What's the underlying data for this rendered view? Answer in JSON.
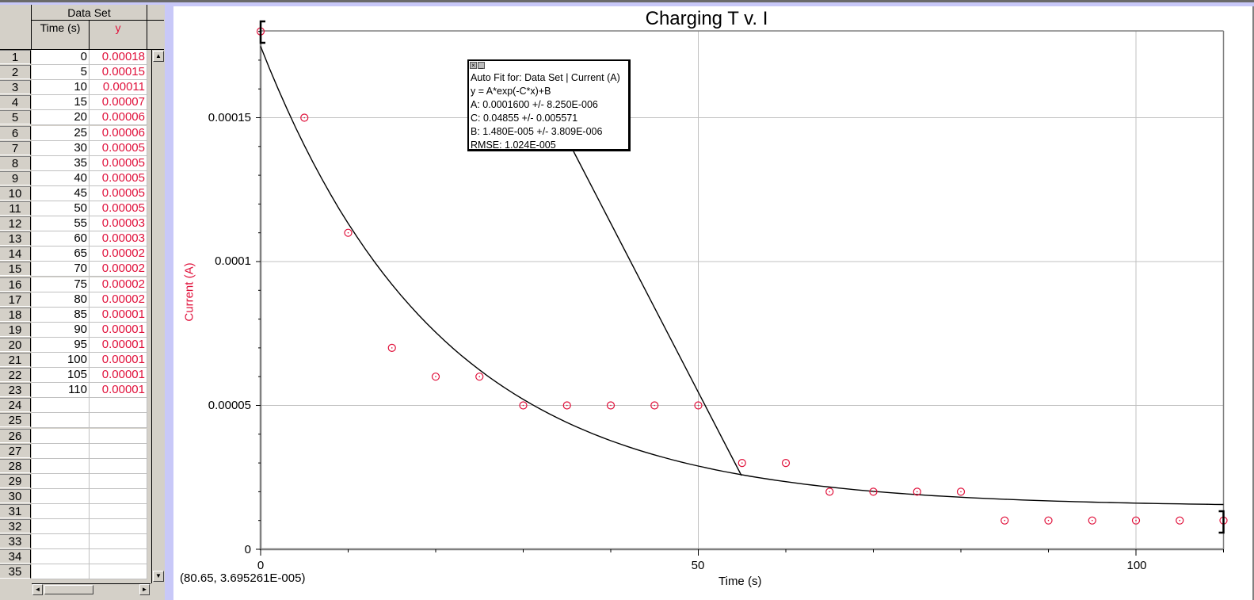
{
  "table": {
    "group_header": "Data Set",
    "columns": [
      {
        "label": "Time (s)",
        "color": "#000000"
      },
      {
        "label": "y",
        "color": "#e0103a"
      }
    ],
    "rows": [
      {
        "n": "1",
        "t": "0",
        "y": "0.00018"
      },
      {
        "n": "2",
        "t": "5",
        "y": "0.00015"
      },
      {
        "n": "3",
        "t": "10",
        "y": "0.00011"
      },
      {
        "n": "4",
        "t": "15",
        "y": "0.00007"
      },
      {
        "n": "5",
        "t": "20",
        "y": "0.00006"
      },
      {
        "n": "6",
        "t": "25",
        "y": "0.00006"
      },
      {
        "n": "7",
        "t": "30",
        "y": "0.00005"
      },
      {
        "n": "8",
        "t": "35",
        "y": "0.00005"
      },
      {
        "n": "9",
        "t": "40",
        "y": "0.00005"
      },
      {
        "n": "10",
        "t": "45",
        "y": "0.00005"
      },
      {
        "n": "11",
        "t": "50",
        "y": "0.00005"
      },
      {
        "n": "12",
        "t": "55",
        "y": "0.00003"
      },
      {
        "n": "13",
        "t": "60",
        "y": "0.00003"
      },
      {
        "n": "14",
        "t": "65",
        "y": "0.00002"
      },
      {
        "n": "15",
        "t": "70",
        "y": "0.00002"
      },
      {
        "n": "16",
        "t": "75",
        "y": "0.00002"
      },
      {
        "n": "17",
        "t": "80",
        "y": "0.00002"
      },
      {
        "n": "18",
        "t": "85",
        "y": "0.00001"
      },
      {
        "n": "19",
        "t": "90",
        "y": "0.00001"
      },
      {
        "n": "20",
        "t": "95",
        "y": "0.00001"
      },
      {
        "n": "21",
        "t": "100",
        "y": "0.00001"
      },
      {
        "n": "22",
        "t": "105",
        "y": "0.00001"
      },
      {
        "n": "23",
        "t": "110",
        "y": "0.00001"
      },
      {
        "n": "24",
        "t": "",
        "y": ""
      },
      {
        "n": "25",
        "t": "",
        "y": ""
      },
      {
        "n": "26",
        "t": "",
        "y": ""
      },
      {
        "n": "27",
        "t": "",
        "y": ""
      },
      {
        "n": "28",
        "t": "",
        "y": ""
      },
      {
        "n": "29",
        "t": "",
        "y": ""
      },
      {
        "n": "30",
        "t": "",
        "y": ""
      },
      {
        "n": "31",
        "t": "",
        "y": ""
      },
      {
        "n": "32",
        "t": "",
        "y": ""
      },
      {
        "n": "33",
        "t": "",
        "y": ""
      },
      {
        "n": "34",
        "t": "",
        "y": ""
      },
      {
        "n": "35",
        "t": "",
        "y": ""
      }
    ],
    "scroll_icons": {
      "up": "▲",
      "down": "▼",
      "left": "◄",
      "right": "►"
    }
  },
  "graph": {
    "title": "Charging T v. I",
    "xlabel": "Time (s)",
    "ylabel": "Current (A)",
    "cursor_readout": "(80.65, 3.695261E-005)",
    "y_ticks": [
      "0.00015",
      "0.0001",
      "0.00005",
      "0"
    ],
    "x_ticks": [
      "0",
      "50",
      "100"
    ],
    "point_color": "#e0103a",
    "fit_box": {
      "title": "Auto Fit for: Data Set | Current (A)",
      "equation": "y = A*exp(-C*x)+B",
      "A": "A: 0.0001600 +/- 8.250E-006",
      "C": "C: 0.04855 +/- 0.005571",
      "B": "B: 1.480E-005 +/- 3.809E-006",
      "rmse": "RMSE: 1.024E-005",
      "close_icon": "×",
      "minimize_icon": "_"
    }
  },
  "chart_data": {
    "type": "scatter",
    "title": "Charging T v. I",
    "xlabel": "Time (s)",
    "ylabel": "Current (A)",
    "x": [
      0,
      5,
      10,
      15,
      20,
      25,
      30,
      35,
      40,
      45,
      50,
      55,
      60,
      65,
      70,
      75,
      80,
      85,
      90,
      95,
      100,
      105,
      110
    ],
    "series": [
      {
        "name": "Current (A)",
        "values": [
          0.00018,
          0.00015,
          0.00011,
          7e-05,
          6e-05,
          6e-05,
          5e-05,
          5e-05,
          5e-05,
          5e-05,
          5e-05,
          3e-05,
          3e-05,
          2e-05,
          2e-05,
          2e-05,
          2e-05,
          1e-05,
          1e-05,
          1e-05,
          1e-05,
          1e-05,
          1e-05
        ]
      }
    ],
    "fit": {
      "model": "y = A*exp(-C*x)+B",
      "A": 0.00016,
      "C": 0.04855,
      "B": 1.48e-05,
      "rmse": 1.024e-05
    },
    "xlim": [
      0,
      110
    ],
    "ylim": [
      0,
      0.00018
    ],
    "x_ticks": [
      0,
      50,
      100
    ],
    "y_ticks": [
      0,
      5e-05,
      0.0001,
      0.00015
    ],
    "grid": true
  }
}
